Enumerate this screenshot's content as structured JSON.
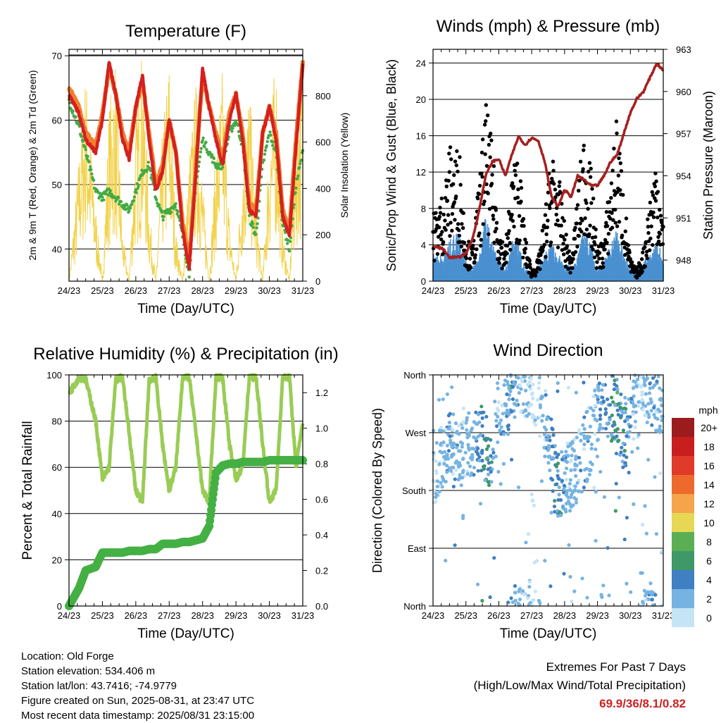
{
  "x_ticks": [
    "24/23",
    "25/23",
    "26/23",
    "27/23",
    "28/23",
    "29/23",
    "30/23",
    "31/23"
  ],
  "x_label": "Time (Day/UTC)",
  "footer": {
    "location": "Location: Old Forge",
    "elevation": "Station elevation: 534.406 m",
    "latlon": "Station lat/lon: 43.7416; -74.9779",
    "created": "Figure created on Sun, 2025-08-31, at 23:47 UTC",
    "recent": "Most recent data timestamp: 2025/08/31 23:15:00",
    "extremes_title": "Extremes For Past 7 Days",
    "extremes_sub": "(High/Low/Max Wind/Total Precipitation)",
    "extremes_value": "69.9/36/8.1/0.82"
  },
  "colors": {
    "temp2m": "#d42020",
    "temp9m": "#f08030",
    "dewpoint": "#44aa44",
    "solar": "#f2d24a",
    "pressure": "#a52020",
    "gust": "#000000",
    "wind": "#4a90d0",
    "rh": "#99cc55",
    "precip": "#44b044"
  },
  "chart_data": [
    {
      "type": "line",
      "title": "Temperature (F)",
      "ylabel": "2m & 9m T (Red, Orange) & 2m Td (Green)",
      "ylabel_right": "Solar Insolation (Yellow)",
      "xlabel": "Time (Day/UTC)",
      "ylim": [
        35,
        71
      ],
      "y_ticks": [
        40,
        50,
        60,
        70
      ],
      "ylim_right": [
        0,
        1000
      ],
      "y_ticks_right": [
        0,
        200,
        400,
        600,
        800
      ],
      "x": [
        24.0,
        24.3,
        24.5,
        24.8,
        25.0,
        25.2,
        25.4,
        25.6,
        25.8,
        26.0,
        26.2,
        26.4,
        26.6,
        26.8,
        27.0,
        27.2,
        27.4,
        27.6,
        27.8,
        28.0,
        28.2,
        28.4,
        28.6,
        28.8,
        29.0,
        29.2,
        29.4,
        29.6,
        29.8,
        30.0,
        30.2,
        30.4,
        30.6,
        30.8,
        31.0
      ],
      "series": [
        {
          "values": [
            64,
            61,
            57,
            55,
            60,
            69,
            64,
            57,
            54,
            62,
            67,
            57,
            49,
            52,
            60,
            55,
            43,
            37,
            52,
            68,
            62,
            57,
            53,
            60,
            64,
            57,
            46,
            45,
            58,
            62,
            57,
            45,
            42,
            56,
            69
          ]
        },
        {
          "values": [
            65,
            62,
            58,
            56,
            61,
            68,
            64,
            58,
            55,
            62,
            66,
            58,
            50,
            53,
            60,
            55,
            44,
            38,
            53,
            67,
            62,
            58,
            54,
            61,
            64,
            58,
            47,
            46,
            58,
            62,
            58,
            46,
            43,
            57,
            69
          ]
        },
        {
          "values": [
            63,
            59,
            55,
            49,
            48,
            49,
            48,
            47,
            46,
            49,
            52,
            53,
            48,
            45,
            46,
            47,
            42,
            36,
            50,
            57,
            55,
            53,
            53,
            58,
            60,
            56,
            45,
            42,
            53,
            58,
            55,
            44,
            40,
            50,
            55
          ]
        },
        {
          "values": [
            0,
            500,
            850,
            300,
            0,
            700,
            900,
            200,
            0,
            650,
            950,
            300,
            0,
            600,
            900,
            200,
            0,
            500,
            800,
            400,
            0,
            550,
            850,
            250,
            0,
            500,
            800,
            300,
            0,
            600,
            900,
            200,
            0,
            700,
            900
          ]
        }
      ]
    },
    {
      "type": "line",
      "title": "Winds (mph) & Pressure (mb)",
      "ylabel": "Sonic/Prop Wind & Gust (Blue, Black)",
      "ylabel_right": "Station Pressure (Maroon)",
      "xlabel": "Time (Day/UTC)",
      "ylim": [
        0,
        25.5
      ],
      "y_ticks": [
        0,
        4,
        8,
        12,
        16,
        20,
        24
      ],
      "ylim_right": [
        946.5,
        963
      ],
      "y_ticks_right": [
        948,
        951,
        954,
        957,
        960,
        963
      ],
      "x": [
        24.0,
        24.3,
        24.5,
        24.8,
        25.0,
        25.2,
        25.4,
        25.6,
        25.8,
        26.0,
        26.2,
        26.4,
        26.6,
        26.8,
        27.0,
        27.2,
        27.4,
        27.6,
        27.8,
        28.0,
        28.2,
        28.4,
        28.6,
        28.8,
        29.0,
        29.2,
        29.4,
        29.6,
        29.8,
        30.0,
        30.2,
        30.4,
        30.6,
        30.8,
        31.0
      ],
      "series": [
        {
          "values": [
            2,
            2,
            3,
            4,
            1.5,
            1,
            2,
            5,
            3,
            1.5,
            1,
            3,
            3,
            1,
            0.5,
            1,
            2,
            3,
            2,
            1.5,
            1,
            2,
            4,
            3,
            1,
            1.5,
            3,
            4,
            2,
            1,
            1,
            1.5,
            2,
            3,
            2
          ]
        },
        {
          "values": [
            6,
            8,
            12,
            12,
            4,
            3,
            9,
            16,
            12,
            5,
            3,
            10,
            12,
            4,
            1,
            2,
            6,
            12,
            10,
            5,
            2,
            8,
            14,
            10,
            3,
            4,
            10,
            15,
            8,
            2,
            1,
            3,
            8,
            12,
            5
          ]
        },
        {
          "values": [
            949,
            948.8,
            948.2,
            948.2,
            948.5,
            949.5,
            951.5,
            954,
            955,
            955.2,
            954,
            955.5,
            956.8,
            956.2,
            956.7,
            956.5,
            955,
            952.5,
            951.8,
            953,
            952.5,
            954,
            953.7,
            953.3,
            953.3,
            954,
            955,
            955.5,
            957,
            958.5,
            959.5,
            960,
            961,
            962,
            961.5
          ]
        }
      ]
    },
    {
      "type": "line",
      "title": "Relative Humidity (%) & Precipitation (in)",
      "ylabel": "Percent & Total Rainfall",
      "xlabel": "Time (Day/UTC)",
      "ylim": [
        0,
        100
      ],
      "y_ticks": [
        0,
        20,
        40,
        60,
        80,
        100
      ],
      "ylim_right": [
        0,
        1.3
      ],
      "y_ticks_right": [
        0.0,
        0.2,
        0.4,
        0.6,
        0.8,
        1.0,
        1.2
      ],
      "x": [
        24.0,
        24.3,
        24.5,
        24.8,
        25.0,
        25.2,
        25.4,
        25.6,
        25.8,
        26.0,
        26.2,
        26.4,
        26.6,
        26.8,
        27.0,
        27.2,
        27.4,
        27.6,
        27.8,
        28.0,
        28.2,
        28.4,
        28.6,
        28.8,
        29.0,
        29.2,
        29.4,
        29.6,
        29.8,
        30.0,
        30.2,
        30.4,
        30.6,
        30.8,
        31.0
      ],
      "series": [
        {
          "values": [
            92,
            99,
            98,
            80,
            55,
            60,
            98,
            99,
            75,
            50,
            45,
            98,
            99,
            70,
            50,
            60,
            99,
            99,
            75,
            50,
            45,
            99,
            99,
            70,
            55,
            60,
            99,
            99,
            70,
            45,
            50,
            99,
            99,
            60,
            80
          ]
        },
        {
          "values": [
            0,
            0.1,
            0.2,
            0.22,
            0.3,
            0.3,
            0.3,
            0.3,
            0.31,
            0.31,
            0.31,
            0.32,
            0.32,
            0.35,
            0.35,
            0.35,
            0.36,
            0.36,
            0.37,
            0.38,
            0.45,
            0.75,
            0.79,
            0.8,
            0.8,
            0.81,
            0.81,
            0.81,
            0.81,
            0.82,
            0.82,
            0.82,
            0.82,
            0.82,
            0.82
          ]
        }
      ]
    },
    {
      "type": "scatter",
      "title": "Wind Direction",
      "ylabel": "Direction (Colored By Speed)",
      "xlabel": "Time (Day/UTC)",
      "y_ticks": [
        "North",
        "East",
        "South",
        "West",
        "North"
      ],
      "ylim": [
        0,
        360
      ],
      "legend_title": "mph",
      "legend_labels": [
        "20+",
        "18",
        "16",
        "14",
        "12",
        "10",
        "8",
        "6",
        "4",
        "2",
        "0"
      ],
      "legend_colors": [
        "#9b1c1c",
        "#c81e1e",
        "#e03a2a",
        "#ee6a2c",
        "#f5a44a",
        "#e6d855",
        "#5cae55",
        "#3f9868",
        "#3f7fc2",
        "#76b3e2",
        "#c5e4f6"
      ],
      "x": [
        24.1,
        24.3,
        24.5,
        24.7,
        24.9,
        25.1,
        25.3,
        25.5,
        25.6,
        25.8,
        26.0,
        26.2,
        26.4,
        26.5,
        26.7,
        26.9,
        27.1,
        27.3,
        27.5,
        27.7,
        27.9,
        28.1,
        28.3,
        28.5,
        28.7,
        28.9,
        29.1,
        29.3,
        29.5,
        29.7,
        29.9,
        30.1,
        30.3,
        30.5,
        30.7,
        30.9
      ],
      "y": [
        200,
        240,
        250,
        250,
        230,
        250,
        240,
        260,
        240,
        250,
        300,
        320,
        340,
        350,
        330,
        350,
        340,
        300,
        270,
        200,
        190,
        200,
        210,
        230,
        250,
        280,
        330,
        310,
        300,
        280,
        270,
        300,
        320,
        340,
        330,
        310
      ],
      "speed": [
        1,
        2,
        3,
        3,
        2,
        2,
        3,
        5,
        6,
        4,
        2,
        3,
        4,
        3,
        2,
        1,
        1,
        2,
        3,
        5,
        4,
        2,
        2,
        3,
        3,
        2,
        3,
        4,
        5,
        6,
        4,
        2,
        1,
        2,
        3,
        2
      ]
    }
  ]
}
